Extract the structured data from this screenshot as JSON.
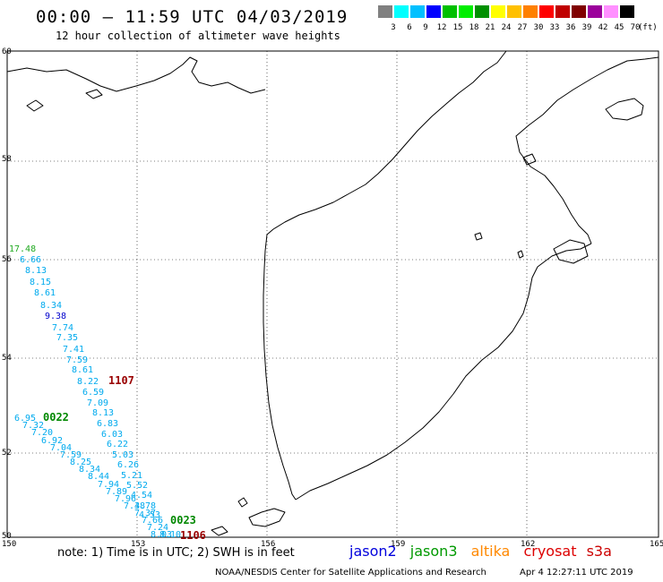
{
  "header": {
    "title": "00:00 — 11:59 UTC 04/03/2019",
    "subtitle": "12 hour collection of altimeter wave heights"
  },
  "color_scale": {
    "colors": [
      "#808080",
      "#00ffff",
      "#00c0ff",
      "#0000ff",
      "#00c000",
      "#00ee00",
      "#009000",
      "#ffff00",
      "#ffc000",
      "#ff8000",
      "#ff0000",
      "#c00000",
      "#800000",
      "#9b009b",
      "#ff90ff",
      "#000000"
    ],
    "labels": [
      "3",
      "6",
      "9",
      "12",
      "15",
      "18",
      "21",
      "24",
      "27",
      "30",
      "33",
      "36",
      "39",
      "42",
      "45",
      "70"
    ],
    "unit": "(ft)"
  },
  "map": {
    "lat_labels": [
      "60",
      "58",
      "56",
      "54",
      "52",
      "50"
    ],
    "lon_labels": [
      "150",
      "153",
      "156",
      "159",
      "162",
      "165"
    ]
  },
  "observations": [
    {
      "text": "17.48",
      "color": "#22aa22"
    },
    {
      "text": "6.66",
      "color": "#00aaee"
    },
    {
      "text": "8.13",
      "color": "#00aaee"
    },
    {
      "text": "8.15",
      "color": "#00aaee"
    },
    {
      "text": "8.61",
      "color": "#00aaee"
    },
    {
      "text": "8.34",
      "color": "#00aaee"
    },
    {
      "text": "9.38",
      "color": "#0000cc"
    },
    {
      "text": "7.74",
      "color": "#00aaee"
    },
    {
      "text": "7.35",
      "color": "#00aaee"
    },
    {
      "text": "7.41",
      "color": "#00aaee"
    },
    {
      "text": "7.59",
      "color": "#00aaee"
    },
    {
      "text": "8.61",
      "color": "#00aaee"
    },
    {
      "text": "8.22",
      "color": "#00aaee"
    },
    {
      "text": "6.59",
      "color": "#00aaee"
    },
    {
      "text": "7.09",
      "color": "#00aaee"
    },
    {
      "text": "8.13",
      "color": "#00aaee"
    },
    {
      "text": "6.83",
      "color": "#00aaee"
    },
    {
      "text": "6.03",
      "color": "#00aaee"
    },
    {
      "text": "6.22",
      "color": "#00aaee"
    },
    {
      "text": "5.03",
      "color": "#00aaee"
    },
    {
      "text": "6.26",
      "color": "#00aaee"
    },
    {
      "text": "5.21",
      "color": "#00aaee"
    },
    {
      "text": "5.52",
      "color": "#00aaee"
    },
    {
      "text": "4.54",
      "color": "#00aaee"
    },
    {
      "text": "4.78",
      "color": "#00aaee"
    },
    {
      "text": "4.53",
      "color": "#00aaee"
    },
    {
      "text": "6.95",
      "color": "#00aaee"
    },
    {
      "text": "7.32",
      "color": "#00aaee"
    },
    {
      "text": "7.20",
      "color": "#00aaee"
    },
    {
      "text": "6.92",
      "color": "#00aaee"
    },
    {
      "text": "7.04",
      "color": "#00aaee"
    },
    {
      "text": "7.59",
      "color": "#00aaee"
    },
    {
      "text": "8.25",
      "color": "#00aaee"
    },
    {
      "text": "8.34",
      "color": "#00aaee"
    },
    {
      "text": "8.44",
      "color": "#00aaee"
    },
    {
      "text": "7.94",
      "color": "#00aaee"
    },
    {
      "text": "7.89",
      "color": "#00aaee"
    },
    {
      "text": "7.96",
      "color": "#00aaee"
    },
    {
      "text": "7.38",
      "color": "#00aaee"
    },
    {
      "text": "7.37",
      "color": "#00aaee"
    },
    {
      "text": "7.66",
      "color": "#00aaee"
    },
    {
      "text": "7.24",
      "color": "#00aaee"
    },
    {
      "text": "8.03",
      "color": "#00aaee"
    },
    {
      "text": "8.10",
      "color": "#00aaee"
    }
  ],
  "passes": [
    {
      "text": "1107",
      "color": "#990000"
    },
    {
      "text": "0022",
      "color": "#008800"
    },
    {
      "text": "0023",
      "color": "#008800"
    },
    {
      "text": "1106",
      "color": "#990000"
    }
  ],
  "note": "note: 1) Time is in UTC; 2) SWH is in feet",
  "satellites": [
    {
      "name": "jason2",
      "color": "#0000dd"
    },
    {
      "name": "jason3",
      "color": "#009900"
    },
    {
      "name": "altika",
      "color": "#ff8800"
    },
    {
      "name": "cryosat",
      "color": "#dd0000"
    },
    {
      "name": "s3a",
      "color": "#cc0000"
    }
  ],
  "footer": {
    "org": "NOAA/NESDIS Center for Satellite Applications and Research",
    "timestamp": "Apr  4 12:27:11 UTC 2019"
  }
}
